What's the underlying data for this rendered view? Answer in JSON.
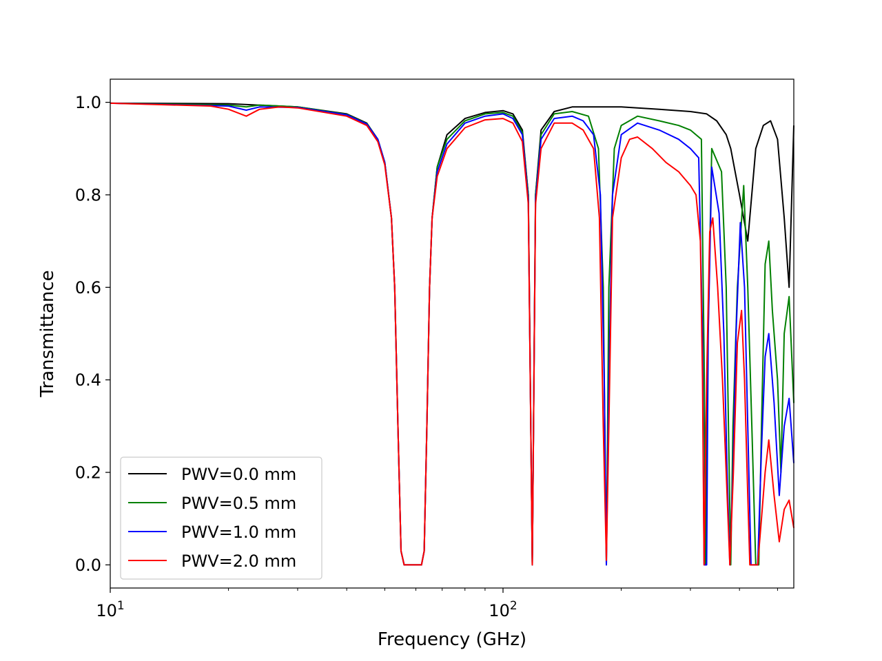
{
  "chart_data": {
    "type": "line",
    "title": "",
    "xlabel": "Frequency (GHz)",
    "ylabel": "Transmittance",
    "xscale": "log",
    "xlim": [
      10,
      550
    ],
    "ylim": [
      -0.05,
      1.05
    ],
    "x_ticks": [
      {
        "value": 10,
        "base": "10",
        "exp": "1"
      },
      {
        "value": 100,
        "base": "10",
        "exp": "2"
      }
    ],
    "y_ticks": [
      {
        "value": 0.0,
        "label": "0.0"
      },
      {
        "value": 0.2,
        "label": "0.2"
      },
      {
        "value": 0.4,
        "label": "0.4"
      },
      {
        "value": 0.6,
        "label": "0.6"
      },
      {
        "value": 0.8,
        "label": "0.8"
      },
      {
        "value": 1.0,
        "label": "1.0"
      }
    ],
    "grid": false,
    "legend_position": "lower-left",
    "series": [
      {
        "name": "PWV=0.0 mm",
        "color": "#000000",
        "points": [
          [
            10,
            0.998
          ],
          [
            20,
            0.997
          ],
          [
            30,
            0.99
          ],
          [
            40,
            0.975
          ],
          [
            45,
            0.955
          ],
          [
            48,
            0.92
          ],
          [
            50,
            0.87
          ],
          [
            52,
            0.75
          ],
          [
            53,
            0.6
          ],
          [
            54,
            0.3
          ],
          [
            55,
            0.03
          ],
          [
            56,
            0.0
          ],
          [
            60,
            0.0
          ],
          [
            62,
            0.0
          ],
          [
            63,
            0.03
          ],
          [
            64,
            0.3
          ],
          [
            65,
            0.6
          ],
          [
            66,
            0.75
          ],
          [
            68,
            0.86
          ],
          [
            72,
            0.93
          ],
          [
            80,
            0.965
          ],
          [
            90,
            0.978
          ],
          [
            100,
            0.982
          ],
          [
            106,
            0.975
          ],
          [
            112,
            0.94
          ],
          [
            116,
            0.8
          ],
          [
            118.75,
            0.0
          ],
          [
            121,
            0.8
          ],
          [
            125,
            0.94
          ],
          [
            135,
            0.98
          ],
          [
            150,
            0.99
          ],
          [
            180,
            0.99
          ],
          [
            200,
            0.99
          ],
          [
            250,
            0.985
          ],
          [
            300,
            0.98
          ],
          [
            330,
            0.975
          ],
          [
            350,
            0.96
          ],
          [
            370,
            0.93
          ],
          [
            380,
            0.9
          ],
          [
            400,
            0.8
          ],
          [
            420,
            0.7
          ],
          [
            440,
            0.9
          ],
          [
            460,
            0.95
          ],
          [
            480,
            0.96
          ],
          [
            500,
            0.92
          ],
          [
            520,
            0.75
          ],
          [
            535,
            0.6
          ],
          [
            550,
            0.95
          ]
        ]
      },
      {
        "name": "PWV=0.5 mm",
        "color": "#008000",
        "points": [
          [
            10,
            0.998
          ],
          [
            20,
            0.994
          ],
          [
            22.2,
            0.99
          ],
          [
            24,
            0.994
          ],
          [
            30,
            0.99
          ],
          [
            40,
            0.974
          ],
          [
            45,
            0.954
          ],
          [
            48,
            0.92
          ],
          [
            50,
            0.87
          ],
          [
            52,
            0.75
          ],
          [
            53,
            0.6
          ],
          [
            54,
            0.3
          ],
          [
            55,
            0.03
          ],
          [
            56,
            0.0
          ],
          [
            60,
            0.0
          ],
          [
            62,
            0.0
          ],
          [
            63,
            0.03
          ],
          [
            64,
            0.3
          ],
          [
            65,
            0.6
          ],
          [
            66,
            0.75
          ],
          [
            68,
            0.86
          ],
          [
            72,
            0.92
          ],
          [
            80,
            0.96
          ],
          [
            90,
            0.975
          ],
          [
            100,
            0.978
          ],
          [
            106,
            0.97
          ],
          [
            112,
            0.935
          ],
          [
            116,
            0.8
          ],
          [
            118.75,
            0.0
          ],
          [
            121,
            0.8
          ],
          [
            125,
            0.93
          ],
          [
            135,
            0.975
          ],
          [
            150,
            0.98
          ],
          [
            165,
            0.97
          ],
          [
            175,
            0.9
          ],
          [
            180,
            0.6
          ],
          [
            183.3,
            0.0
          ],
          [
            186,
            0.6
          ],
          [
            192,
            0.9
          ],
          [
            200,
            0.95
          ],
          [
            220,
            0.97
          ],
          [
            250,
            0.96
          ],
          [
            280,
            0.95
          ],
          [
            300,
            0.94
          ],
          [
            320,
            0.92
          ],
          [
            325,
            0.45
          ],
          [
            328,
            0.0
          ],
          [
            332,
            0.45
          ],
          [
            340,
            0.9
          ],
          [
            360,
            0.85
          ],
          [
            370,
            0.6
          ],
          [
            375,
            0.3
          ],
          [
            380,
            0.0
          ],
          [
            385,
            0.3
          ],
          [
            395,
            0.6
          ],
          [
            410,
            0.82
          ],
          [
            420,
            0.6
          ],
          [
            430,
            0.3
          ],
          [
            440,
            0.0
          ],
          [
            448,
            0.0
          ],
          [
            455,
            0.3
          ],
          [
            465,
            0.65
          ],
          [
            475,
            0.7
          ],
          [
            485,
            0.55
          ],
          [
            500,
            0.4
          ],
          [
            510,
            0.2
          ],
          [
            520,
            0.5
          ],
          [
            535,
            0.58
          ],
          [
            550,
            0.35
          ]
        ]
      },
      {
        "name": "PWV=1.0 mm",
        "color": "#0000ff",
        "points": [
          [
            10,
            0.998
          ],
          [
            20,
            0.992
          ],
          [
            22.2,
            0.983
          ],
          [
            24,
            0.99
          ],
          [
            30,
            0.989
          ],
          [
            40,
            0.973
          ],
          [
            45,
            0.953
          ],
          [
            48,
            0.92
          ],
          [
            50,
            0.87
          ],
          [
            52,
            0.75
          ],
          [
            53,
            0.6
          ],
          [
            54,
            0.3
          ],
          [
            55,
            0.03
          ],
          [
            56,
            0.0
          ],
          [
            60,
            0.0
          ],
          [
            62,
            0.0
          ],
          [
            63,
            0.03
          ],
          [
            64,
            0.3
          ],
          [
            65,
            0.6
          ],
          [
            66,
            0.75
          ],
          [
            68,
            0.85
          ],
          [
            72,
            0.91
          ],
          [
            80,
            0.955
          ],
          [
            90,
            0.97
          ],
          [
            100,
            0.975
          ],
          [
            106,
            0.965
          ],
          [
            112,
            0.93
          ],
          [
            116,
            0.79
          ],
          [
            118.75,
            0.0
          ],
          [
            121,
            0.79
          ],
          [
            125,
            0.92
          ],
          [
            135,
            0.965
          ],
          [
            150,
            0.97
          ],
          [
            160,
            0.96
          ],
          [
            170,
            0.93
          ],
          [
            177,
            0.8
          ],
          [
            181,
            0.4
          ],
          [
            183.3,
            0.0
          ],
          [
            186,
            0.4
          ],
          [
            190,
            0.8
          ],
          [
            200,
            0.93
          ],
          [
            220,
            0.955
          ],
          [
            250,
            0.94
          ],
          [
            280,
            0.92
          ],
          [
            300,
            0.9
          ],
          [
            315,
            0.88
          ],
          [
            322,
            0.5
          ],
          [
            325,
            0.0
          ],
          [
            330,
            0.0
          ],
          [
            333,
            0.5
          ],
          [
            340,
            0.86
          ],
          [
            355,
            0.76
          ],
          [
            365,
            0.5
          ],
          [
            372,
            0.2
          ],
          [
            378,
            0.0
          ],
          [
            385,
            0.2
          ],
          [
            392,
            0.5
          ],
          [
            402,
            0.74
          ],
          [
            412,
            0.6
          ],
          [
            420,
            0.3
          ],
          [
            428,
            0.0
          ],
          [
            445,
            0.0
          ],
          [
            455,
            0.25
          ],
          [
            465,
            0.45
          ],
          [
            475,
            0.5
          ],
          [
            490,
            0.35
          ],
          [
            505,
            0.15
          ],
          [
            520,
            0.3
          ],
          [
            535,
            0.36
          ],
          [
            550,
            0.22
          ]
        ]
      },
      {
        "name": "PWV=2.0 mm",
        "color": "#ff0000",
        "points": [
          [
            10,
            0.998
          ],
          [
            18,
            0.992
          ],
          [
            20,
            0.985
          ],
          [
            22.2,
            0.97
          ],
          [
            24,
            0.985
          ],
          [
            27,
            0.99
          ],
          [
            30,
            0.988
          ],
          [
            40,
            0.97
          ],
          [
            45,
            0.95
          ],
          [
            48,
            0.915
          ],
          [
            50,
            0.865
          ],
          [
            52,
            0.75
          ],
          [
            53,
            0.6
          ],
          [
            54,
            0.3
          ],
          [
            55,
            0.03
          ],
          [
            56,
            0.0
          ],
          [
            60,
            0.0
          ],
          [
            62,
            0.0
          ],
          [
            63,
            0.03
          ],
          [
            64,
            0.3
          ],
          [
            65,
            0.6
          ],
          [
            66,
            0.75
          ],
          [
            68,
            0.84
          ],
          [
            72,
            0.9
          ],
          [
            80,
            0.945
          ],
          [
            90,
            0.962
          ],
          [
            100,
            0.965
          ],
          [
            106,
            0.955
          ],
          [
            112,
            0.915
          ],
          [
            116,
            0.78
          ],
          [
            118.75,
            0.0
          ],
          [
            121,
            0.78
          ],
          [
            125,
            0.9
          ],
          [
            135,
            0.955
          ],
          [
            150,
            0.955
          ],
          [
            160,
            0.94
          ],
          [
            170,
            0.9
          ],
          [
            176,
            0.75
          ],
          [
            180,
            0.3
          ],
          [
            183.3,
            0.01
          ],
          [
            186,
            0.3
          ],
          [
            190,
            0.75
          ],
          [
            200,
            0.88
          ],
          [
            210,
            0.92
          ],
          [
            220,
            0.925
          ],
          [
            240,
            0.9
          ],
          [
            260,
            0.87
          ],
          [
            280,
            0.85
          ],
          [
            300,
            0.82
          ],
          [
            310,
            0.8
          ],
          [
            318,
            0.7
          ],
          [
            322,
            0.4
          ],
          [
            325,
            0.0
          ],
          [
            330,
            0.4
          ],
          [
            336,
            0.72
          ],
          [
            342,
            0.75
          ],
          [
            352,
            0.6
          ],
          [
            362,
            0.4
          ],
          [
            370,
            0.2
          ],
          [
            378,
            0.0
          ],
          [
            386,
            0.2
          ],
          [
            395,
            0.48
          ],
          [
            405,
            0.55
          ],
          [
            412,
            0.4
          ],
          [
            420,
            0.15
          ],
          [
            425,
            0.0
          ],
          [
            445,
            0.0
          ],
          [
            455,
            0.1
          ],
          [
            465,
            0.2
          ],
          [
            475,
            0.27
          ],
          [
            490,
            0.15
          ],
          [
            505,
            0.05
          ],
          [
            520,
            0.12
          ],
          [
            535,
            0.14
          ],
          [
            550,
            0.08
          ]
        ]
      }
    ]
  }
}
